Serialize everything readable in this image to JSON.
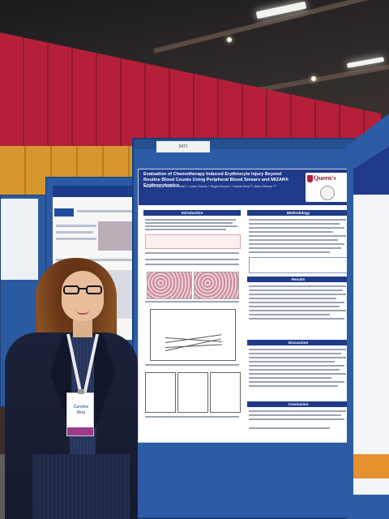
{
  "scene": {
    "description_free": true
  },
  "main_poster": {
    "booth_tag": "2471",
    "title": "Evaluation of Chemotherapy Induced Erythrocyte Injury Beyond Routine Blood Counts Using Peripheral Blood Smears and MIZAR® Erythrocytomics",
    "authors": "Caroline Bing ¹, Yousif Al-Abbasi ¹, Lucas Chronis ¹, Regan Boucot ¹, Yosana Tewa ¹², Maha Othman ¹²³",
    "logo": "Queen's",
    "sections": {
      "introduction": "Introduction",
      "methodology": "Methodology",
      "results": "Results",
      "discussion": "Discussion",
      "conclusion": "Conclusion"
    }
  },
  "badge": {
    "first_name": "Caroline",
    "last_name": "Bing"
  },
  "colors": {
    "poster_navy": "#1f3a8a",
    "board_blue": "#2d5ca6",
    "wall_red": "#b51f3a",
    "queens_red": "#8e1b2e"
  }
}
